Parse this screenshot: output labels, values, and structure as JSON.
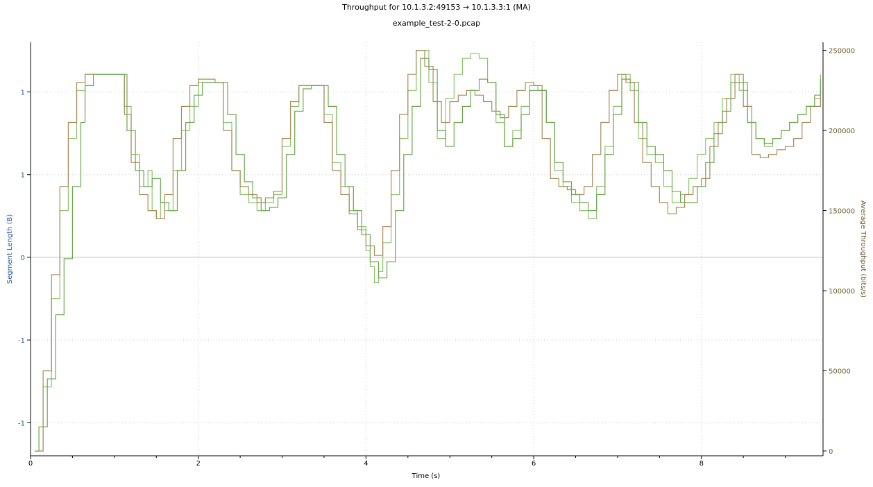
{
  "chart_data": {
    "type": "line",
    "title": "Throughput for 10.1.3.2:49153 → 10.1.3.3:1 (MA)",
    "subtitle": "example_test-2-0.pcap",
    "xlabel": "Time (s)",
    "ylabel_left": "Segment Length (B)",
    "ylabel_right": "Average Throughput (bits/s)",
    "xlim": [
      0,
      9.45
    ],
    "xticks": [
      0,
      2,
      4,
      6,
      8
    ],
    "ylim_left": [
      -1.2,
      1.3
    ],
    "yticks_left": [
      {
        "value": -1.0,
        "label": "-1"
      },
      {
        "value": -0.5,
        "label": "-1"
      },
      {
        "value": 0,
        "label": "0"
      },
      {
        "value": 0.5,
        "label": "1"
      },
      {
        "value": 1.0,
        "label": "1"
      }
    ],
    "ylim_right": [
      -3000,
      255000
    ],
    "yticks_right": [
      0,
      50000,
      100000,
      150000,
      200000,
      250000
    ],
    "grid": true,
    "zero_line": true,
    "colors": {
      "series_a": "#8bc46a",
      "series_b": "#a88a5a",
      "series_c": "#6aa84f",
      "axis": "#000000",
      "grid": "#c8c8c8",
      "zero": "#c0c0c0"
    },
    "series": [
      {
        "color_key": "series_a",
        "x": [
          0.05,
          0.15,
          0.25,
          0.35,
          0.45,
          0.55,
          0.65,
          0.75,
          0.85,
          0.95,
          1.05,
          1.12,
          1.2,
          1.3,
          1.4,
          1.45,
          1.5,
          1.55,
          1.6,
          1.7,
          1.8,
          1.9,
          2.0,
          2.1,
          2.2,
          2.3,
          2.4,
          2.5,
          2.6,
          2.7,
          2.8,
          2.9,
          3.0,
          3.1,
          3.2,
          3.3,
          3.4,
          3.5,
          3.6,
          3.7,
          3.8,
          3.9,
          4.0,
          4.05,
          4.1,
          4.15,
          4.2,
          4.3,
          4.4,
          4.5,
          4.6,
          4.65,
          4.75,
          4.85,
          4.95,
          5.05,
          5.15,
          5.25,
          5.35,
          5.45,
          5.55,
          5.65,
          5.75,
          5.85,
          5.95,
          6.05,
          6.15,
          6.25,
          6.35,
          6.45,
          6.55,
          6.65,
          6.75,
          6.85,
          6.95,
          7.05,
          7.15,
          7.25,
          7.35,
          7.45,
          7.55,
          7.65,
          7.75,
          7.85,
          7.95,
          8.05,
          8.15,
          8.25,
          8.35,
          8.45,
          8.55,
          8.65,
          8.75,
          8.85,
          8.95,
          9.05,
          9.15,
          9.25,
          9.35,
          9.42
        ],
        "y": [
          0,
          40000,
          95000,
          150000,
          195000,
          225000,
          235000,
          235000,
          235000,
          235000,
          235000,
          215000,
          185000,
          165000,
          175000,
          150000,
          145000,
          155000,
          150000,
          175000,
          200000,
          215000,
          230000,
          230000,
          230000,
          205000,
          175000,
          160000,
          155000,
          150000,
          155000,
          160000,
          190000,
          215000,
          228000,
          228000,
          228000,
          210000,
          180000,
          165000,
          150000,
          140000,
          125000,
          115000,
          105000,
          112000,
          130000,
          160000,
          195000,
          225000,
          250000,
          250000,
          230000,
          195000,
          220000,
          235000,
          245000,
          248000,
          245000,
          230000,
          205000,
          190000,
          200000,
          215000,
          228000,
          225000,
          205000,
          175000,
          165000,
          155000,
          150000,
          145000,
          165000,
          190000,
          215000,
          235000,
          225000,
          195000,
          185000,
          180000,
          165000,
          155000,
          160000,
          170000,
          185000,
          195000,
          205000,
          220000,
          235000,
          225000,
          205000,
          195000,
          190000,
          195000,
          200000,
          205000,
          210000,
          215000,
          220000,
          235000
        ]
      },
      {
        "color_key": "series_b",
        "x": [
          0.05,
          0.15,
          0.25,
          0.35,
          0.45,
          0.55,
          0.65,
          0.75,
          0.85,
          0.95,
          1.05,
          1.12,
          1.2,
          1.3,
          1.4,
          1.5,
          1.6,
          1.7,
          1.8,
          1.9,
          2.0,
          2.1,
          2.2,
          2.3,
          2.4,
          2.5,
          2.6,
          2.7,
          2.8,
          2.9,
          3.0,
          3.1,
          3.2,
          3.3,
          3.4,
          3.5,
          3.6,
          3.7,
          3.8,
          3.9,
          4.0,
          4.1,
          4.2,
          4.3,
          4.4,
          4.5,
          4.6,
          4.7,
          4.8,
          4.9,
          5.0,
          5.1,
          5.2,
          5.3,
          5.4,
          5.5,
          5.6,
          5.7,
          5.8,
          5.9,
          6.0,
          6.1,
          6.2,
          6.3,
          6.4,
          6.5,
          6.6,
          6.7,
          6.8,
          6.9,
          7.0,
          7.1,
          7.2,
          7.3,
          7.4,
          7.5,
          7.6,
          7.7,
          7.8,
          7.9,
          8.0,
          8.1,
          8.2,
          8.3,
          8.4,
          8.5,
          8.6,
          8.7,
          8.8,
          8.9,
          9.0,
          9.1,
          9.2,
          9.3,
          9.42
        ],
        "y": [
          0,
          50000,
          110000,
          165000,
          205000,
          230000,
          235000,
          235000,
          235000,
          235000,
          235000,
          210000,
          180000,
          160000,
          150000,
          145000,
          160000,
          195000,
          215000,
          228000,
          232000,
          232000,
          230000,
          200000,
          175000,
          165000,
          160000,
          155000,
          158000,
          162000,
          195000,
          218000,
          228000,
          228000,
          228000,
          205000,
          175000,
          160000,
          148000,
          138000,
          128000,
          122000,
          140000,
          175000,
          210000,
          235000,
          250000,
          240000,
          218000,
          205000,
          218000,
          222000,
          225000,
          222000,
          218000,
          212000,
          208000,
          215000,
          225000,
          230000,
          228000,
          195000,
          170000,
          165000,
          163000,
          160000,
          165000,
          185000,
          205000,
          225000,
          235000,
          230000,
          205000,
          180000,
          165000,
          155000,
          148000,
          152000,
          160000,
          165000,
          170000,
          190000,
          205000,
          220000,
          235000,
          215000,
          185000,
          183000,
          185000,
          188000,
          190000,
          195000,
          205000,
          215000,
          230000
        ]
      },
      {
        "color_key": "series_c",
        "x": [
          0.05,
          0.1,
          0.2,
          0.3,
          0.4,
          0.5,
          0.6,
          0.65,
          0.75,
          0.85,
          0.95,
          1.05,
          1.15,
          1.25,
          1.35,
          1.45,
          1.55,
          1.65,
          1.75,
          1.85,
          1.95,
          2.05,
          2.15,
          2.25,
          2.35,
          2.45,
          2.55,
          2.65,
          2.75,
          2.85,
          2.95,
          3.05,
          3.15,
          3.25,
          3.35,
          3.45,
          3.55,
          3.65,
          3.75,
          3.85,
          3.95,
          4.05,
          4.15,
          4.25,
          4.35,
          4.45,
          4.55,
          4.65,
          4.75,
          4.85,
          4.95,
          5.05,
          5.15,
          5.25,
          5.35,
          5.45,
          5.55,
          5.65,
          5.75,
          5.85,
          5.95,
          6.05,
          6.15,
          6.25,
          6.35,
          6.45,
          6.55,
          6.65,
          6.75,
          6.85,
          6.95,
          7.05,
          7.15,
          7.25,
          7.35,
          7.45,
          7.55,
          7.65,
          7.75,
          7.85,
          7.95,
          8.05,
          8.15,
          8.25,
          8.35,
          8.45,
          8.55,
          8.65,
          8.75,
          8.85,
          8.95,
          9.05,
          9.15,
          9.25,
          9.35,
          9.42
        ],
        "y": [
          0,
          15000,
          45000,
          85000,
          120000,
          165000,
          205000,
          228000,
          235000,
          235000,
          235000,
          235000,
          200000,
          175000,
          165000,
          170000,
          155000,
          150000,
          175000,
          205000,
          222000,
          230000,
          230000,
          230000,
          210000,
          185000,
          168000,
          158000,
          150000,
          152000,
          158000,
          185000,
          212000,
          226000,
          228000,
          228000,
          215000,
          185000,
          165000,
          150000,
          135000,
          118000,
          108000,
          118000,
          150000,
          185000,
          215000,
          245000,
          238000,
          200000,
          190000,
          205000,
          215000,
          225000,
          232000,
          230000,
          210000,
          190000,
          195000,
          210000,
          225000,
          225000,
          205000,
          180000,
          168000,
          160000,
          155000,
          150000,
          160000,
          185000,
          210000,
          232000,
          230000,
          205000,
          190000,
          185000,
          175000,
          162000,
          155000,
          155000,
          165000,
          180000,
          198000,
          212000,
          230000,
          230000,
          205000,
          195000,
          192000,
          195000,
          200000,
          205000,
          210000,
          215000,
          222000,
          232000
        ]
      }
    ]
  }
}
